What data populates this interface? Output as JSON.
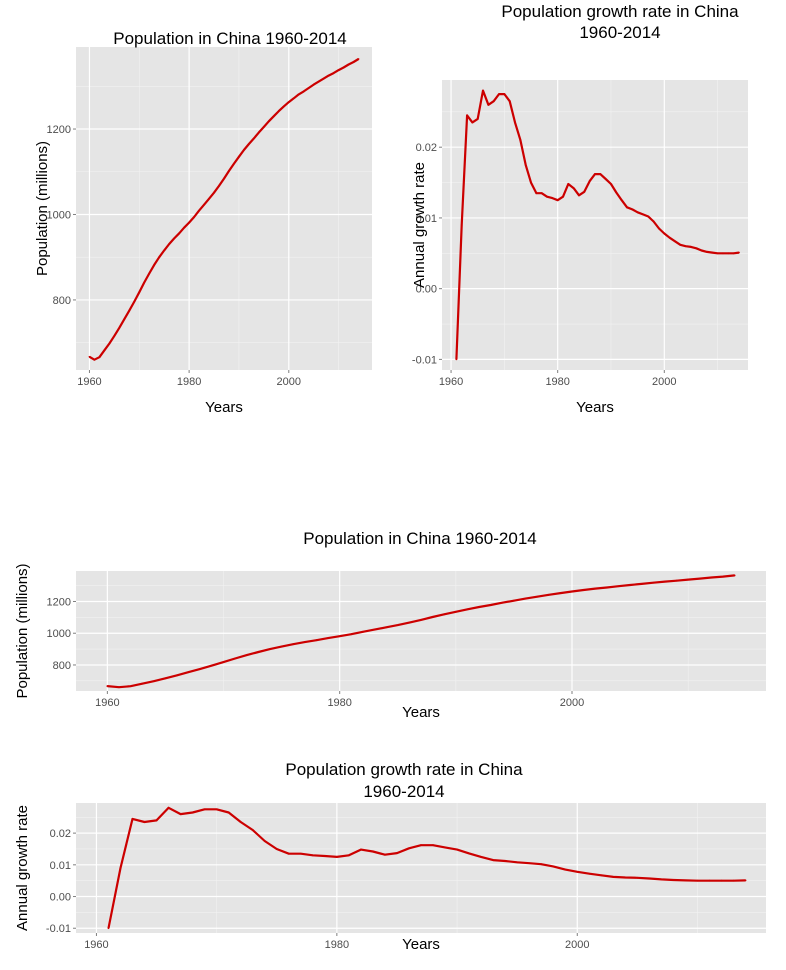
{
  "chart_data": [
    {
      "type": "line",
      "title_lines": [
        "Population in China 1960-2014"
      ],
      "xlabel": "Years",
      "ylabel": "Population (millions)",
      "xlim": [
        1957.3,
        2016.7
      ],
      "ylim": [
        636,
        1392
      ],
      "x_ticks": [
        1960,
        1980,
        2000
      ],
      "y_ticks": [
        800,
        1000,
        1200
      ],
      "x_tick_labels": [
        "1960",
        "1980",
        "2000"
      ],
      "y_tick_labels": [
        "800",
        "1000",
        "1200"
      ],
      "grid": true,
      "line_color": "#cc0000",
      "series": [
        {
          "x": [
            1960,
            1961,
            1962,
            1963,
            1964,
            1965,
            1966,
            1967,
            1968,
            1969,
            1970,
            1971,
            1972,
            1973,
            1974,
            1975,
            1976,
            1977,
            1978,
            1979,
            1980,
            1981,
            1982,
            1983,
            1984,
            1985,
            1986,
            1987,
            1988,
            1989,
            1990,
            1991,
            1992,
            1993,
            1994,
            1995,
            1996,
            1997,
            1998,
            1999,
            2000,
            2001,
            2002,
            2003,
            2004,
            2005,
            2006,
            2007,
            2008,
            2009,
            2010,
            2011,
            2012,
            2013,
            2014
          ],
          "values": [
            667,
            660,
            666,
            682,
            698,
            716,
            735,
            755,
            775,
            796,
            818,
            841,
            862,
            882,
            900,
            916,
            931,
            944,
            956,
            969,
            981,
            994,
            1009,
            1023,
            1037,
            1051,
            1067,
            1084,
            1102,
            1119,
            1135,
            1151,
            1165,
            1178,
            1192,
            1205,
            1218,
            1230,
            1242,
            1253,
            1263,
            1272,
            1281,
            1288,
            1296,
            1304,
            1311,
            1318,
            1325,
            1331,
            1338,
            1344,
            1351,
            1357,
            1364
          ]
        }
      ]
    },
    {
      "type": "line",
      "title_lines": [
        "Population growth rate in China",
        "1960-2014"
      ],
      "xlabel": "Years",
      "ylabel": "Annual growth rate",
      "xlim": [
        1958.3,
        2015.7
      ],
      "ylim": [
        -0.0115,
        0.0295
      ],
      "x_ticks": [
        1960,
        1980,
        2000
      ],
      "y_ticks": [
        -0.01,
        0,
        0.01,
        0.02
      ],
      "x_tick_labels": [
        "1960",
        "1980",
        "2000"
      ],
      "y_tick_labels": [
        "-0.01",
        "0.00",
        "0.01",
        "0.02"
      ],
      "grid": true,
      "line_color": "#cc0000",
      "series": [
        {
          "x": [
            1961,
            1962,
            1963,
            1964,
            1965,
            1966,
            1967,
            1968,
            1969,
            1970,
            1971,
            1972,
            1973,
            1974,
            1975,
            1976,
            1977,
            1978,
            1979,
            1980,
            1981,
            1982,
            1983,
            1984,
            1985,
            1986,
            1987,
            1988,
            1989,
            1990,
            1991,
            1992,
            1993,
            1994,
            1995,
            1996,
            1997,
            1998,
            1999,
            2000,
            2001,
            2002,
            2003,
            2004,
            2005,
            2006,
            2007,
            2008,
            2009,
            2010,
            2011,
            2012,
            2013,
            2014
          ],
          "values": [
            -0.01,
            0.009,
            0.0245,
            0.0235,
            0.024,
            0.028,
            0.026,
            0.0265,
            0.0275,
            0.0275,
            0.0265,
            0.0235,
            0.021,
            0.0175,
            0.015,
            0.0135,
            0.0135,
            0.013,
            0.0128,
            0.0125,
            0.013,
            0.0148,
            0.0142,
            0.0132,
            0.0137,
            0.0152,
            0.0162,
            0.0162,
            0.0155,
            0.0148,
            0.0136,
            0.0125,
            0.0115,
            0.0112,
            0.0108,
            0.0105,
            0.0102,
            0.0095,
            0.0085,
            0.0078,
            0.0072,
            0.0067,
            0.0062,
            0.006,
            0.0059,
            0.0057,
            0.0054,
            0.0052,
            0.0051,
            0.005,
            0.005,
            0.005,
            0.005,
            0.0051
          ]
        }
      ]
    },
    {
      "type": "line",
      "title_lines": [
        "Population in China 1960-2014"
      ],
      "xlabel": "Years",
      "ylabel": "Population (millions)",
      "xlim": [
        1957.3,
        2016.7
      ],
      "ylim": [
        636,
        1392
      ],
      "x_ticks": [
        1960,
        1980,
        2000
      ],
      "y_ticks": [
        800,
        1000,
        1200
      ],
      "x_tick_labels": [
        "1960",
        "1980",
        "2000"
      ],
      "y_tick_labels": [
        "800",
        "1000",
        "1200"
      ],
      "grid": true,
      "line_color": "#cc0000",
      "series": [
        {
          "x": [
            1960,
            1961,
            1962,
            1963,
            1964,
            1965,
            1966,
            1967,
            1968,
            1969,
            1970,
            1971,
            1972,
            1973,
            1974,
            1975,
            1976,
            1977,
            1978,
            1979,
            1980,
            1981,
            1982,
            1983,
            1984,
            1985,
            1986,
            1987,
            1988,
            1989,
            1990,
            1991,
            1992,
            1993,
            1994,
            1995,
            1996,
            1997,
            1998,
            1999,
            2000,
            2001,
            2002,
            2003,
            2004,
            2005,
            2006,
            2007,
            2008,
            2009,
            2010,
            2011,
            2012,
            2013,
            2014
          ],
          "values": [
            667,
            660,
            666,
            682,
            698,
            716,
            735,
            755,
            775,
            796,
            818,
            841,
            862,
            882,
            900,
            916,
            931,
            944,
            956,
            969,
            981,
            994,
            1009,
            1023,
            1037,
            1051,
            1067,
            1084,
            1102,
            1119,
            1135,
            1151,
            1165,
            1178,
            1192,
            1205,
            1218,
            1230,
            1242,
            1253,
            1263,
            1272,
            1281,
            1288,
            1296,
            1304,
            1311,
            1318,
            1325,
            1331,
            1338,
            1344,
            1351,
            1357,
            1364
          ]
        }
      ]
    },
    {
      "type": "line",
      "title_lines": [
        "Population growth rate in China",
        "1960-2014"
      ],
      "xlabel": "Years",
      "ylabel": "Annual growth rate",
      "xlim": [
        1958.3,
        2015.7
      ],
      "ylim": [
        -0.0115,
        0.0295
      ],
      "x_ticks": [
        1960,
        1980,
        2000
      ],
      "y_ticks": [
        -0.01,
        0,
        0.01,
        0.02
      ],
      "x_tick_labels": [
        "1960",
        "1980",
        "2000"
      ],
      "y_tick_labels": [
        "-0.01",
        "0.00",
        "0.01",
        "0.02"
      ],
      "grid": true,
      "line_color": "#cc0000",
      "series": [
        {
          "x": [
            1961,
            1962,
            1963,
            1964,
            1965,
            1966,
            1967,
            1968,
            1969,
            1970,
            1971,
            1972,
            1973,
            1974,
            1975,
            1976,
            1977,
            1978,
            1979,
            1980,
            1981,
            1982,
            1983,
            1984,
            1985,
            1986,
            1987,
            1988,
            1989,
            1990,
            1991,
            1992,
            1993,
            1994,
            1995,
            1996,
            1997,
            1998,
            1999,
            2000,
            2001,
            2002,
            2003,
            2004,
            2005,
            2006,
            2007,
            2008,
            2009,
            2010,
            2011,
            2012,
            2013,
            2014
          ],
          "values": [
            -0.01,
            0.009,
            0.0245,
            0.0235,
            0.024,
            0.028,
            0.026,
            0.0265,
            0.0275,
            0.0275,
            0.0265,
            0.0235,
            0.021,
            0.0175,
            0.015,
            0.0135,
            0.0135,
            0.013,
            0.0128,
            0.0125,
            0.013,
            0.0148,
            0.0142,
            0.0132,
            0.0137,
            0.0152,
            0.0162,
            0.0162,
            0.0155,
            0.0148,
            0.0136,
            0.0125,
            0.0115,
            0.0112,
            0.0108,
            0.0105,
            0.0102,
            0.0095,
            0.0085,
            0.0078,
            0.0072,
            0.0067,
            0.0062,
            0.006,
            0.0059,
            0.0057,
            0.0054,
            0.0052,
            0.0051,
            0.005,
            0.005,
            0.005,
            0.005,
            0.0051
          ]
        }
      ]
    }
  ]
}
